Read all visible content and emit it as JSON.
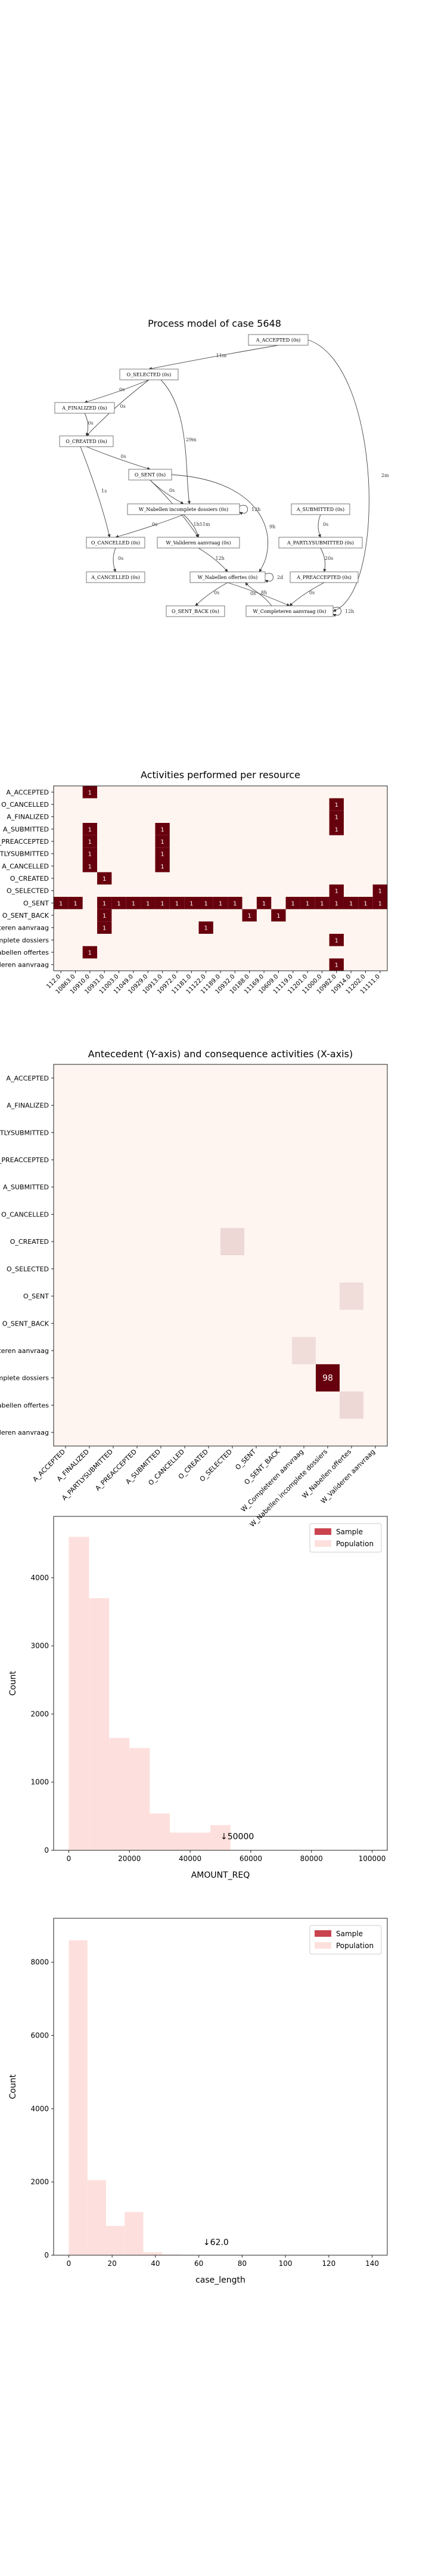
{
  "process_model": {
    "title": "Process model of case 5648",
    "nodes": [
      {
        "id": "a_accepted",
        "label": "A_ACCEPTED (0s)"
      },
      {
        "id": "o_selected",
        "label": "O_SELECTED (0s)"
      },
      {
        "id": "a_finalized",
        "label": "A_FINALIZED (0s)"
      },
      {
        "id": "o_created",
        "label": "O_CREATED (0s)"
      },
      {
        "id": "o_sent",
        "label": "O_SENT (0s)"
      },
      {
        "id": "w_nabellen_incompleet",
        "label": "W_Nabellen incomplete dossiers (0s)"
      },
      {
        "id": "a_submitted",
        "label": "A_SUBMITTED (0s)"
      },
      {
        "id": "o_cancelled",
        "label": "O_CANCELLED (0s)"
      },
      {
        "id": "w_valideren",
        "label": "W_Valideren aanvraag (0s)"
      },
      {
        "id": "a_partlysubmitted",
        "label": "A_PARTLYSUBMITTED (0s)"
      },
      {
        "id": "a_cancelled",
        "label": "A_CANCELLED (0s)"
      },
      {
        "id": "w_nabellen_offertes",
        "label": "W_Nabellen offertes (0s)"
      },
      {
        "id": "a_preaccepted",
        "label": "A_PREACCEPTED (0s)"
      },
      {
        "id": "o_sent_back",
        "label": "O_SENT_BACK (0s)"
      },
      {
        "id": "w_completeren",
        "label": "W_Completeren aanvraag (0s)"
      }
    ],
    "edges": [
      {
        "from": "a_accepted",
        "to": "o_selected",
        "label": "11m"
      },
      {
        "from": "o_selected",
        "to": "a_finalized",
        "label": "0s"
      },
      {
        "from": "o_selected",
        "to": "o_created",
        "label": "0s"
      },
      {
        "from": "a_finalized",
        "to": "o_created",
        "label": "0s"
      },
      {
        "from": "o_created",
        "to": "o_sent",
        "label": "0s"
      },
      {
        "from": "o_selected",
        "to": "w_nabellen_incompleet",
        "label": "29m"
      },
      {
        "from": "o_sent",
        "to": "w_nabellen_incompleet",
        "label": "0s"
      },
      {
        "from": "o_sent",
        "to": "w_valideren",
        "label": "3d"
      },
      {
        "from": "o_created",
        "to": "o_cancelled",
        "label": "1s"
      },
      {
        "from": "w_nabellen_incompleet",
        "to": "w_valideren",
        "label": "1h51m"
      },
      {
        "from": "w_nabellen_incompleet",
        "to": "w_nabellen_incompleet",
        "label": "12h"
      },
      {
        "from": "w_nabellen_incompleet",
        "to": "o_cancelled",
        "label": "0s"
      },
      {
        "from": "o_cancelled",
        "to": "a_cancelled",
        "label": "0s"
      },
      {
        "from": "w_valideren",
        "to": "w_nabellen_offertes",
        "label": "12h"
      },
      {
        "from": "o_sent",
        "to": "w_nabellen_offertes",
        "label": "9h"
      },
      {
        "from": "w_nabellen_offertes",
        "to": "w_nabellen_offertes",
        "label": "2d"
      },
      {
        "from": "w_nabellen_offertes",
        "to": "o_sent_back",
        "label": "0s"
      },
      {
        "from": "w_nabellen_offertes",
        "to": "w_completeren",
        "label": "8h"
      },
      {
        "from": "a_submitted",
        "to": "a_partlysubmitted",
        "label": "0s"
      },
      {
        "from": "a_partlysubmitted",
        "to": "a_preaccepted",
        "label": "20s"
      },
      {
        "from": "a_preaccepted",
        "to": "w_completeren",
        "label": "0s"
      },
      {
        "from": "w_completeren",
        "to": "w_completeren",
        "label": "12h"
      },
      {
        "from": "w_completeren",
        "to": "w_nabellen_offertes",
        "label": "0s"
      },
      {
        "from": "a_accepted",
        "to": "w_completeren",
        "label": "2m"
      }
    ]
  },
  "chart_data": [
    {
      "type": "heatmap",
      "title": "Activities performed per resource",
      "rows": [
        "A_ACCEPTED",
        "O_CANCELLED",
        "A_FINALIZED",
        "A_SUBMITTED",
        "A_PREACCEPTED",
        "A_PARTLYSUBMITTED",
        "A_CANCELLED",
        "O_CREATED",
        "O_SELECTED",
        "O_SENT",
        "O_SENT_BACK",
        "W_Completeren aanvraag",
        "W_Nabellen incomplete dossiers",
        "W_Nabellen offertes",
        "W_Valideren aanvraag"
      ],
      "row_labels": [
        "A_ACCEPTED",
        "O_CANCELLED",
        "A_FINALIZED",
        "A_SUBMITTED",
        "A_PREACCEPTED",
        "A_PARTLYSUBMITTED",
        "A_CANCELLED",
        "O_CREATED",
        "O_SELECTED",
        "O_SENT",
        "O_SENT_BACK",
        "W_Completeren aanvraag",
        "W_Nabellen incomplete dossiers",
        "W_Nabellen offertes",
        "W_Valideren aanvraag"
      ],
      "columns": [
        "112.0",
        "10863.0",
        "10910.0",
        "10931.0",
        "11003.0",
        "11049.0",
        "10929.0",
        "10913.0",
        "10972.0",
        "11181.0",
        "11122.0",
        "11189.0",
        "10932.0",
        "10188.0",
        "11169.0",
        "10609.0",
        "11119.0",
        "11201.0",
        "11000.0",
        "10982.0",
        "10914.0",
        "11202.0",
        "11111.0"
      ],
      "cells": [
        {
          "r": 0,
          "c": 2,
          "v": 1
        },
        {
          "r": 1,
          "c": 19,
          "v": 1
        },
        {
          "r": 2,
          "c": 19,
          "v": 1
        },
        {
          "r": 3,
          "c": 2,
          "v": 1
        },
        {
          "r": 3,
          "c": 7,
          "v": 1
        },
        {
          "r": 3,
          "c": 19,
          "v": 1
        },
        {
          "r": 4,
          "c": 2,
          "v": 1
        },
        {
          "r": 4,
          "c": 7,
          "v": 1
        },
        {
          "r": 5,
          "c": 2,
          "v": 1
        },
        {
          "r": 5,
          "c": 7,
          "v": 1
        },
        {
          "r": 6,
          "c": 2,
          "v": 1
        },
        {
          "r": 6,
          "c": 7,
          "v": 1
        },
        {
          "r": 7,
          "c": 3,
          "v": 1
        },
        {
          "r": 8,
          "c": 19,
          "v": 1
        },
        {
          "r": 8,
          "c": 22,
          "v": 1
        },
        {
          "r": 9,
          "c": 0,
          "v": 1
        },
        {
          "r": 9,
          "c": 1,
          "v": 1
        },
        {
          "r": 9,
          "c": 3,
          "v": 1
        },
        {
          "r": 9,
          "c": 4,
          "v": 1
        },
        {
          "r": 9,
          "c": 5,
          "v": 1
        },
        {
          "r": 9,
          "c": 6,
          "v": 1
        },
        {
          "r": 9,
          "c": 7,
          "v": 1
        },
        {
          "r": 9,
          "c": 8,
          "v": 1
        },
        {
          "r": 9,
          "c": 9,
          "v": 1
        },
        {
          "r": 9,
          "c": 10,
          "v": 1
        },
        {
          "r": 9,
          "c": 11,
          "v": 1
        },
        {
          "r": 9,
          "c": 12,
          "v": 1
        },
        {
          "r": 9,
          "c": 14,
          "v": 1
        },
        {
          "r": 9,
          "c": 16,
          "v": 1
        },
        {
          "r": 9,
          "c": 17,
          "v": 1
        },
        {
          "r": 9,
          "c": 18,
          "v": 1
        },
        {
          "r": 9,
          "c": 19,
          "v": 1
        },
        {
          "r": 9,
          "c": 20,
          "v": 1
        },
        {
          "r": 9,
          "c": 21,
          "v": 1
        },
        {
          "r": 9,
          "c": 22,
          "v": 1
        },
        {
          "r": 10,
          "c": 3,
          "v": 1
        },
        {
          "r": 10,
          "c": 13,
          "v": 1
        },
        {
          "r": 10,
          "c": 15,
          "v": 1
        },
        {
          "r": 11,
          "c": 3,
          "v": 1
        },
        {
          "r": 11,
          "c": 10,
          "v": 1
        },
        {
          "r": 12,
          "c": 19,
          "v": 1
        },
        {
          "r": 13,
          "c": 2,
          "v": 1
        },
        {
          "r": 14,
          "c": 19,
          "v": 1
        }
      ]
    },
    {
      "type": "heatmap",
      "title": "Antecedent (Y-axis) and consequence activities (X-axis)",
      "rows": [
        "A_ACCEPTED",
        "A_FINALIZED",
        "A_PARTLYSUBMITTED",
        "A_PREACCEPTED",
        "A_SUBMITTED",
        "O_CANCELLED",
        "O_CREATED",
        "O_SELECTED",
        "O_SENT",
        "O_SENT_BACK",
        "W_Completeren aanvraag",
        "W_Nabellen incomplete dossiers",
        "W_Nabellen offertes",
        "W_Valideren aanvraag"
      ],
      "row_labels": [
        "A_ACCEPTED",
        "A_FINALIZED",
        "A_PARTLYSUBMITTED",
        "A_PREACCEPTED",
        "A_SUBMITTED",
        "O_CANCELLED",
        "O_CREATED",
        "O_SELECTED",
        "O_SENT",
        "O_SENT_BACK",
        "W_Completeren aanvraag",
        "W_Nabellen incomplete dossiers",
        "W_Nabellen offertes",
        "W_Valideren aanvraag"
      ],
      "columns": [
        "A_ACCEPTED",
        "A_FINALIZED",
        "A_PARTLYSUBMITTED",
        "A_PREACCEPTED",
        "A_SUBMITTED",
        "O_CANCELLED",
        "O_CREATED",
        "O_SELECTED",
        "O_SENT",
        "O_SENT_BACK",
        "W_Completeren aanvraag",
        "W_Nabellen incomplete dossiers",
        "W_Nabellen offertes",
        "W_Valideren aanvraag"
      ],
      "cells": [
        {
          "r": 6,
          "c": 7,
          "v": 3
        },
        {
          "r": 11,
          "c": 11,
          "v": 98
        },
        {
          "r": 12,
          "c": 12,
          "v": 6
        },
        {
          "r": 10,
          "c": 10,
          "v": 2
        },
        {
          "r": 8,
          "c": 12,
          "v": 2
        }
      ],
      "annotated": [
        {
          "r": 11,
          "c": 11,
          "v": "98"
        }
      ]
    },
    {
      "type": "bar",
      "xlabel": "AMOUNT_REQ",
      "ylabel": "Count",
      "xlim": [
        -5000,
        105000
      ],
      "ylim": [
        0,
        4900
      ],
      "xticks": [
        "0",
        "20000",
        "40000",
        "60000",
        "80000",
        "100000"
      ],
      "xtick_values": [
        0,
        20000,
        40000,
        60000,
        80000,
        100000
      ],
      "yticks": [
        "0",
        "1000",
        "2000",
        "3000",
        "4000"
      ],
      "ytick_values": [
        0,
        1000,
        2000,
        3000,
        4000
      ],
      "legend": [
        "Sample",
        "Population"
      ],
      "legend_position": "top-right",
      "annotation": "↓50000",
      "annotation_x": 50000,
      "annotation_y": 160,
      "bins": [
        0,
        6700,
        13300,
        20000,
        26700,
        33300,
        40000,
        46700,
        53300
      ],
      "population": [
        4600,
        3700,
        1650,
        1500,
        540,
        260,
        260,
        370
      ],
      "sample": [
        0,
        0,
        0,
        0,
        0,
        0,
        0,
        0
      ]
    },
    {
      "type": "bar",
      "xlabel": "case_length",
      "ylabel": "Count",
      "xlim": [
        -7,
        147
      ],
      "ylim": [
        0,
        9200
      ],
      "xticks": [
        "0",
        "20",
        "40",
        "60",
        "80",
        "100",
        "120",
        "140"
      ],
      "xtick_values": [
        0,
        20,
        40,
        60,
        80,
        100,
        120,
        140
      ],
      "yticks": [
        "0",
        "2000",
        "4000",
        "6000",
        "8000"
      ],
      "ytick_values": [
        0,
        2000,
        4000,
        6000,
        8000
      ],
      "legend": [
        "Sample",
        "Population"
      ],
      "legend_position": "top-right",
      "annotation": "↓62.0",
      "annotation_x": 62,
      "annotation_y": 280,
      "bins": [
        0,
        8.6,
        17.2,
        25.8,
        34.4,
        43,
        51.6
      ],
      "population": [
        8600,
        2050,
        800,
        1180,
        80,
        20
      ],
      "sample": [
        0,
        0,
        0,
        0,
        0,
        0
      ]
    }
  ],
  "colors": {
    "cell_dark": "#67000d",
    "cell_light": "#fff5f0",
    "hist_population": "#fde0dd",
    "hist_sample": "#c9444f",
    "node_fill": "#ffffff",
    "node_border": "#555555"
  }
}
